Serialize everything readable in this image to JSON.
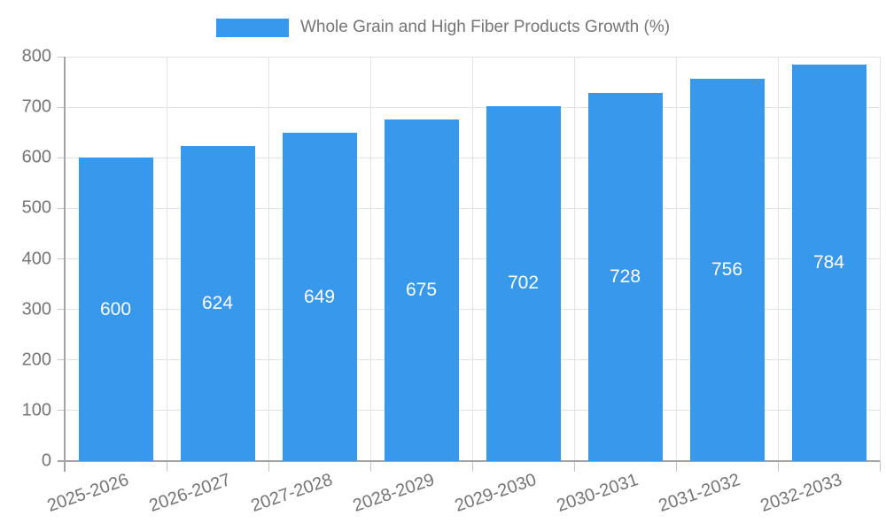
{
  "legend": {
    "label": "Whole Grain and High Fiber Products Growth (%)",
    "swatch_color": "#3899EC"
  },
  "chart_data": {
    "type": "bar",
    "title": "Whole Grain and High Fiber Products Growth (%)",
    "categories": [
      "2025-2026",
      "2026-2027",
      "2027-2028",
      "2028-2029",
      "2029-2030",
      "2030-2031",
      "2031-2032",
      "2032-2033"
    ],
    "values": [
      600,
      624,
      649,
      675,
      702,
      728,
      756,
      784
    ],
    "value_labels": [
      "600",
      "624",
      "649",
      "675",
      "702",
      "728",
      "756",
      "784"
    ],
    "xlabel": "",
    "ylabel": "",
    "ylim": [
      0,
      800
    ],
    "ytick_step": 100,
    "ytick_labels": [
      "0",
      "100",
      "200",
      "300",
      "400",
      "500",
      "600",
      "700",
      "800"
    ],
    "grid": true,
    "legend_position": "top-center",
    "x_label_rotation_deg": -19,
    "colors": {
      "bar": "#3899EC",
      "value_label": "#ffffff",
      "axis": "#a3a3a3",
      "gridline": "#e3e3e3",
      "tick": "#c4c4c4",
      "tick_label": "#757575"
    }
  }
}
